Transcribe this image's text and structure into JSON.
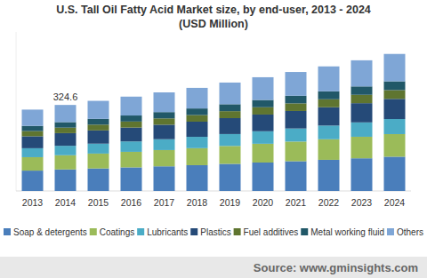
{
  "chart_data": {
    "type": "bar",
    "stacked": true,
    "title": "U.S. Tall Oil Fatty Acid Market size, by end-user, 2013 - 2024",
    "subtitle": "(USD Million)",
    "source": "Source: www.gminsights.com",
    "categories": [
      "2013",
      "2014",
      "2015",
      "2016",
      "2017",
      "2018",
      "2019",
      "2020",
      "2021",
      "2022",
      "2023",
      "2024"
    ],
    "ylim": [
      0,
      600
    ],
    "tick_labels": "x",
    "grid": false,
    "legend": "bottom",
    "annotations": [
      {
        "text": "324.6",
        "x": "2014",
        "y": 324.6
      }
    ],
    "series": [
      {
        "name": "Soap & detergents",
        "color": "#4a7ebb",
        "values": [
          76.8,
          81.2,
          85.0,
          89.0,
          93.0,
          97.3,
          102.3,
          107.3,
          112.3,
          117.5,
          123.3,
          129.3
        ]
      },
      {
        "name": "Coatings",
        "color": "#9bbb59",
        "values": [
          50.7,
          53.6,
          56.1,
          58.7,
          61.4,
          64.2,
          67.5,
          70.8,
          74.1,
          77.6,
          81.3,
          85.3
        ]
      },
      {
        "name": "Lubricants",
        "color": "#4bacc6",
        "values": [
          33.8,
          35.7,
          37.4,
          39.2,
          40.9,
          42.8,
          45.0,
          47.2,
          49.4,
          51.7,
          54.2,
          56.9
        ]
      },
      {
        "name": "Plastics",
        "color": "#254a78",
        "values": [
          45.1,
          47.7,
          50.0,
          52.3,
          54.7,
          57.2,
          60.1,
          63.1,
          66.0,
          69.1,
          72.5,
          76.0
        ]
      },
      {
        "name": "Fuel additives",
        "color": "#5f7530",
        "values": [
          19.6,
          20.8,
          21.8,
          22.8,
          23.8,
          24.9,
          26.2,
          27.5,
          28.7,
          30.1,
          31.6,
          33.1
        ]
      },
      {
        "name": "Metal working fluid",
        "color": "#215868",
        "values": [
          19.6,
          20.8,
          21.8,
          22.8,
          23.8,
          24.9,
          26.2,
          27.5,
          28.7,
          30.1,
          31.6,
          33.1
        ]
      },
      {
        "name": "Others",
        "color": "#7fa6d6",
        "values": [
          61.4,
          64.8,
          68.0,
          71.2,
          74.4,
          77.8,
          81.8,
          85.8,
          89.8,
          94.0,
          98.6,
          103.4
        ]
      }
    ]
  }
}
